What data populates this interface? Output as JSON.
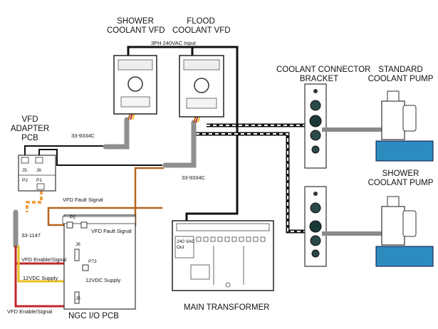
{
  "labels": {
    "shower_vfd": [
      "SHOWER",
      "COOLANT VFD"
    ],
    "flood_vfd": [
      "FLOOD",
      "COOLANT VFD"
    ],
    "input": "3PH 240VAC Input",
    "connector_bracket": [
      "COOLANT CONNECTOR",
      "BRACKET"
    ],
    "standard_pump": [
      "STANDARD",
      "COOLANT PUMP"
    ],
    "shower_pump": [
      "SHOWER",
      "COOLANT PUMP"
    ],
    "adapter_pcb": [
      "VFD",
      "ADAPTER",
      "PCB"
    ],
    "cable_a": "33-9334C",
    "cable_b": "33-9334C",
    "cable_c": "33-1147",
    "fault_signal_1": "VFD Fault Signal",
    "fault_signal_2": "VFD Fault Signal",
    "enable_signal_1": "VFD Enable/Signal",
    "enable_signal_2": "VFD Enable/Signal",
    "supply_1": "12VDC Supply",
    "supply_2": "12VDC Supply",
    "main_transformer": "MAIN TRANSFORMER",
    "ngc_pcb": "NGC I/O PCB",
    "transformer_out": [
      "240 VAC",
      "Out"
    ]
  },
  "connectors": {
    "j5_adapter": "J5",
    "j6_adapter": "J6",
    "p2_adapter": "P2",
    "p1_adapter": "P1",
    "p2_io": "P2",
    "j6_io": "J6",
    "p73_io": "P73",
    "j5_io": "J5"
  },
  "colors": {
    "power": "#111111",
    "fault": "#b5651d",
    "enable": "#c0272d",
    "supply": "#e8c020",
    "cable": "#9a9a9a",
    "pump": "#2c8cc0"
  }
}
